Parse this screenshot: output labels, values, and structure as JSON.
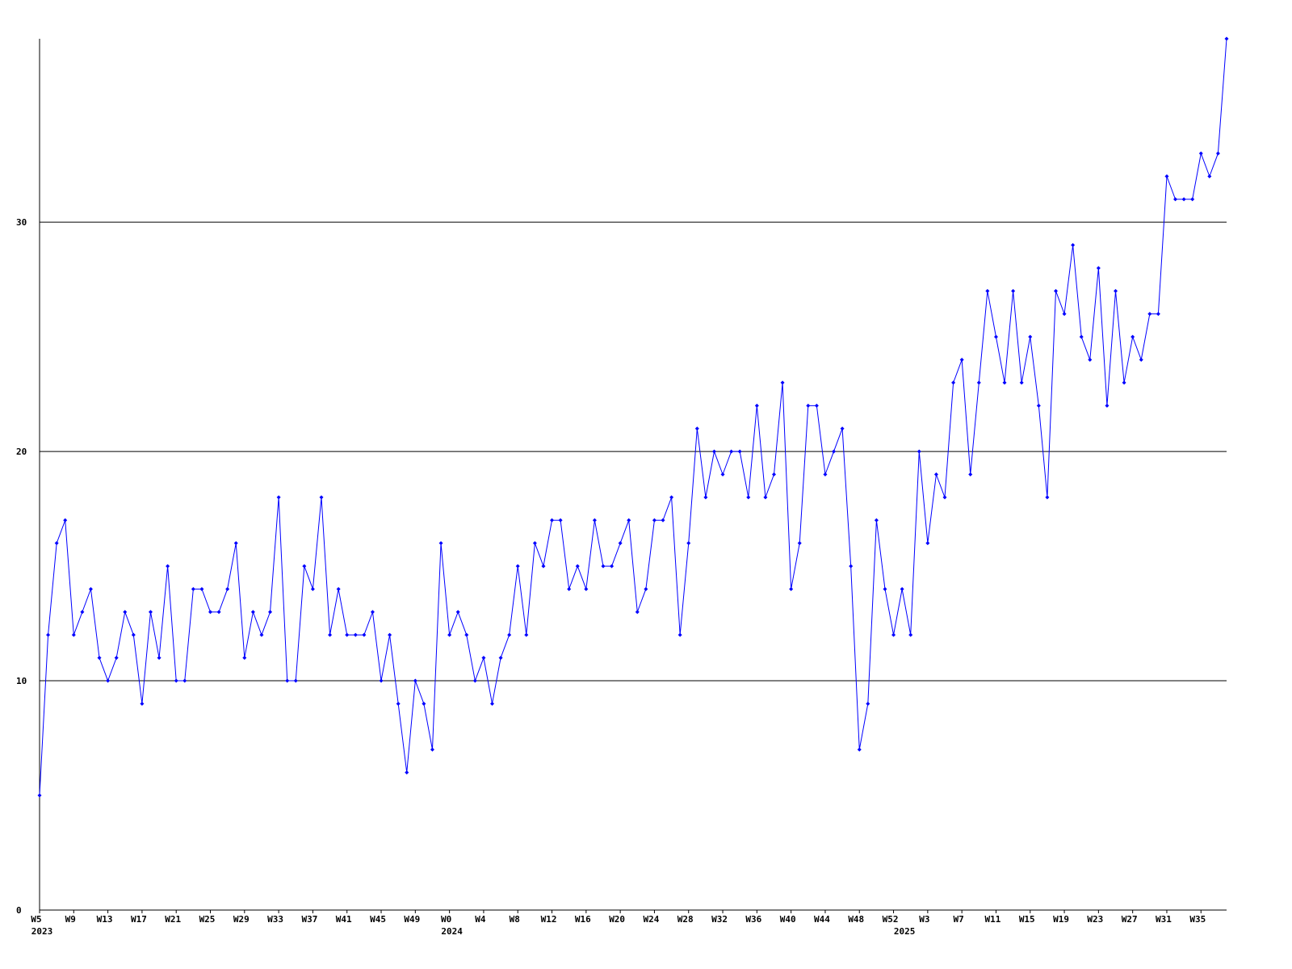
{
  "chart_data": {
    "type": "line",
    "categories": [
      "W5",
      null,
      null,
      null,
      "W9",
      null,
      null,
      null,
      "W13",
      null,
      null,
      null,
      "W17",
      null,
      null,
      null,
      "W21",
      null,
      null,
      null,
      "W25",
      null,
      null,
      null,
      "W29",
      null,
      null,
      null,
      "W33",
      null,
      null,
      null,
      "W37",
      null,
      null,
      null,
      "W41",
      null,
      null,
      null,
      "W45",
      null,
      null,
      null,
      "W49",
      null,
      null,
      null,
      "W0",
      null,
      null,
      null,
      "W4",
      null,
      null,
      null,
      "W8",
      null,
      null,
      null,
      "W12",
      null,
      null,
      null,
      "W16",
      null,
      null,
      null,
      "W20",
      null,
      null,
      null,
      "W24",
      null,
      null,
      null,
      "W28",
      null,
      null,
      null,
      "W32",
      null,
      null,
      null,
      "W36",
      null,
      null,
      null,
      "W40",
      null,
      null,
      null,
      "W44",
      null,
      null,
      null,
      "W48",
      null,
      null,
      null,
      "W52",
      null,
      null,
      null,
      "W3",
      null,
      null,
      null,
      "W7",
      null,
      null,
      null,
      "W11",
      null,
      null,
      null,
      "W15",
      null,
      null,
      null,
      "W19",
      null,
      null,
      null,
      "W23",
      null,
      null,
      null,
      "W27",
      null,
      null,
      null,
      "W31",
      null,
      null,
      null,
      "W35",
      null,
      null,
      null
    ],
    "year_labels": [
      {
        "index": 0,
        "label": "2023"
      },
      {
        "index": 48,
        "label": "2024"
      },
      {
        "index": 101,
        "label": "2025"
      }
    ],
    "series": [
      {
        "color": "#0000ff",
        "values": [
          5,
          12,
          16,
          17,
          12,
          13,
          14,
          11,
          10,
          11,
          13,
          12,
          9,
          13,
          11,
          15,
          10,
          10,
          14,
          14,
          13,
          13,
          14,
          16,
          11,
          13,
          12,
          13,
          18,
          10,
          10,
          15,
          14,
          18,
          12,
          14,
          12,
          12,
          12,
          13,
          10,
          12,
          9,
          6,
          10,
          9,
          7,
          16,
          12,
          13,
          12,
          10,
          11,
          9,
          11,
          12,
          15,
          12,
          16,
          15,
          17,
          17,
          14,
          15,
          14,
          17,
          15,
          15,
          16,
          17,
          13,
          14,
          17,
          17,
          18,
          12,
          16,
          21,
          18,
          20,
          19,
          20,
          20,
          18,
          22,
          18,
          19,
          23,
          14,
          16,
          22,
          22,
          19,
          20,
          21,
          15,
          7,
          9,
          17,
          14,
          12,
          14,
          12,
          20,
          16,
          19,
          18,
          23,
          24,
          19,
          23,
          27,
          25,
          23,
          27,
          23,
          25,
          22,
          18,
          27,
          26,
          29,
          25,
          24,
          28,
          22,
          27,
          23,
          25,
          24,
          26,
          26,
          32,
          31,
          31,
          31,
          33,
          32,
          33,
          38
        ]
      }
    ],
    "ylim": [
      0,
      38
    ],
    "yticks": [
      0,
      10,
      20,
      30
    ],
    "grid": true
  }
}
